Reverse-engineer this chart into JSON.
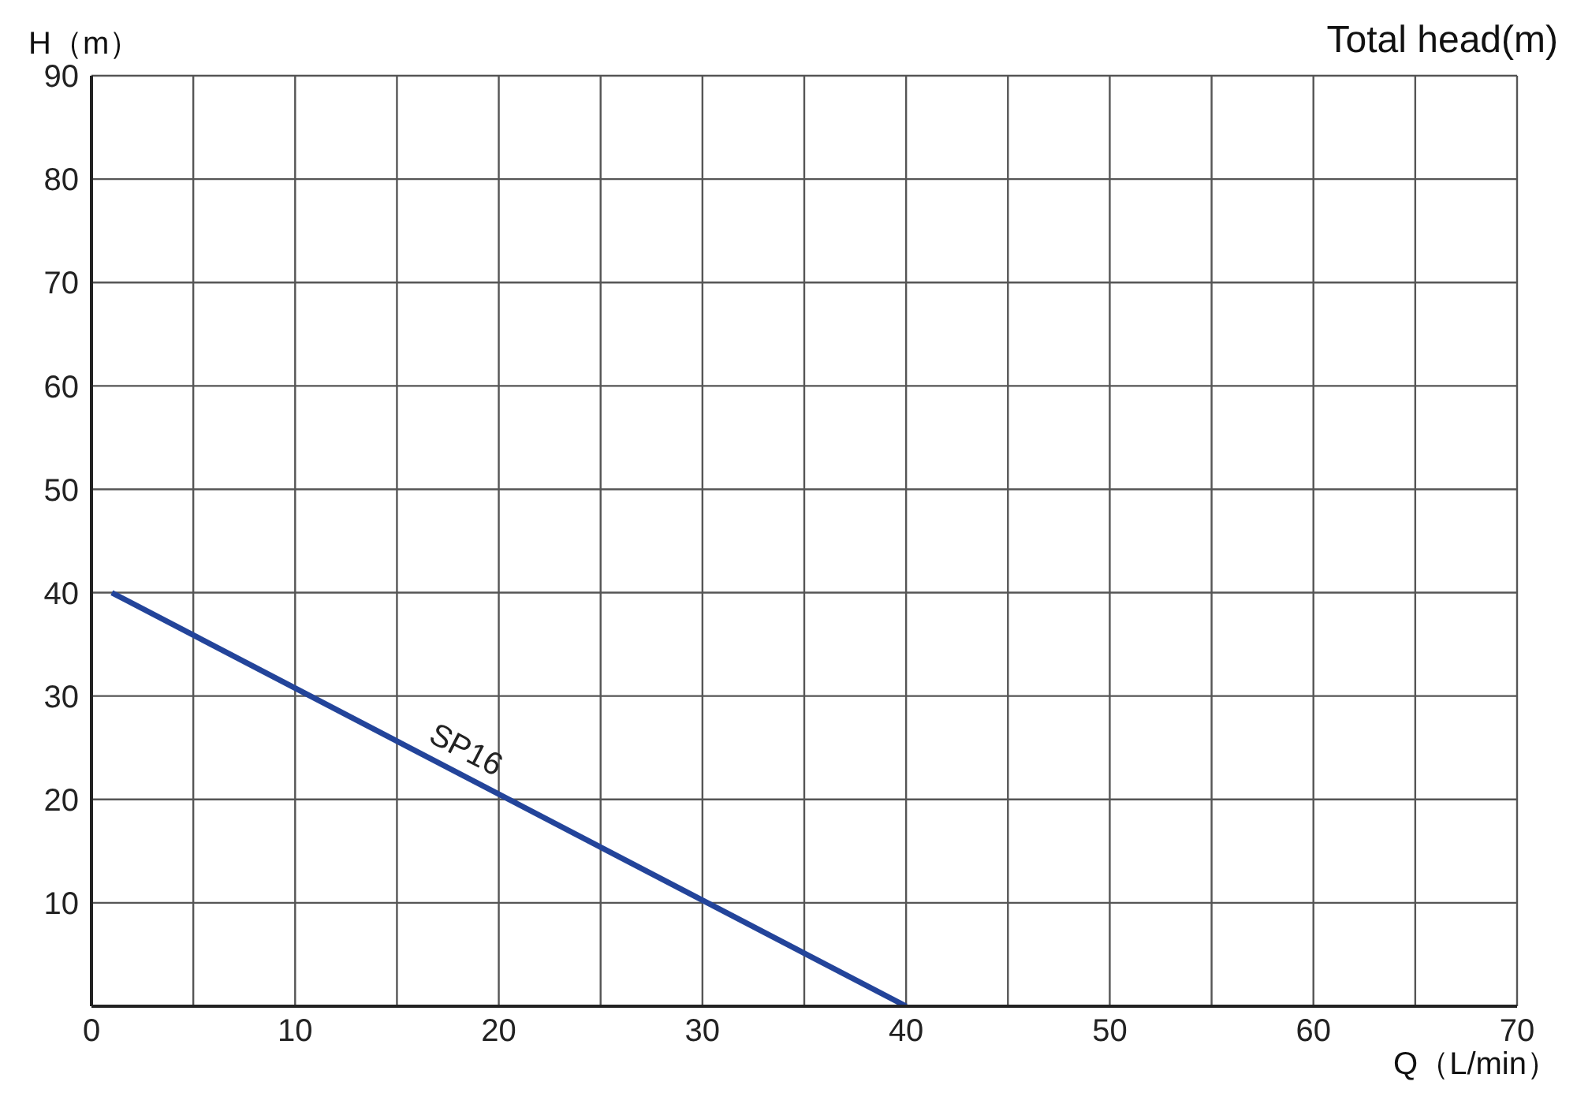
{
  "chart_data": {
    "type": "line",
    "title": "Total head(m)",
    "xlabel": "Q（L/min）",
    "ylabel": "H（m）",
    "x": [
      1,
      40
    ],
    "series": [
      {
        "name": "SP16",
        "color": "#23449a",
        "values": [
          40,
          0
        ]
      }
    ],
    "xlim": [
      0,
      70
    ],
    "ylim": [
      0,
      90
    ],
    "xticks": [
      0,
      {
        "value": 5,
        "label": null
      },
      10,
      {
        "value": 15,
        "label": null
      },
      20,
      {
        "value": 25,
        "label": null
      },
      30,
      {
        "value": 35,
        "label": null
      },
      40,
      {
        "value": 45,
        "label": null
      },
      50,
      {
        "value": 55,
        "label": null
      },
      60,
      {
        "value": 65,
        "label": null
      },
      70
    ],
    "yticks": [
      {
        "value": 0,
        "label": null
      },
      10,
      20,
      30,
      40,
      50,
      60,
      70,
      80,
      90
    ],
    "grid": true,
    "marker": "none",
    "line_style": "solid"
  }
}
